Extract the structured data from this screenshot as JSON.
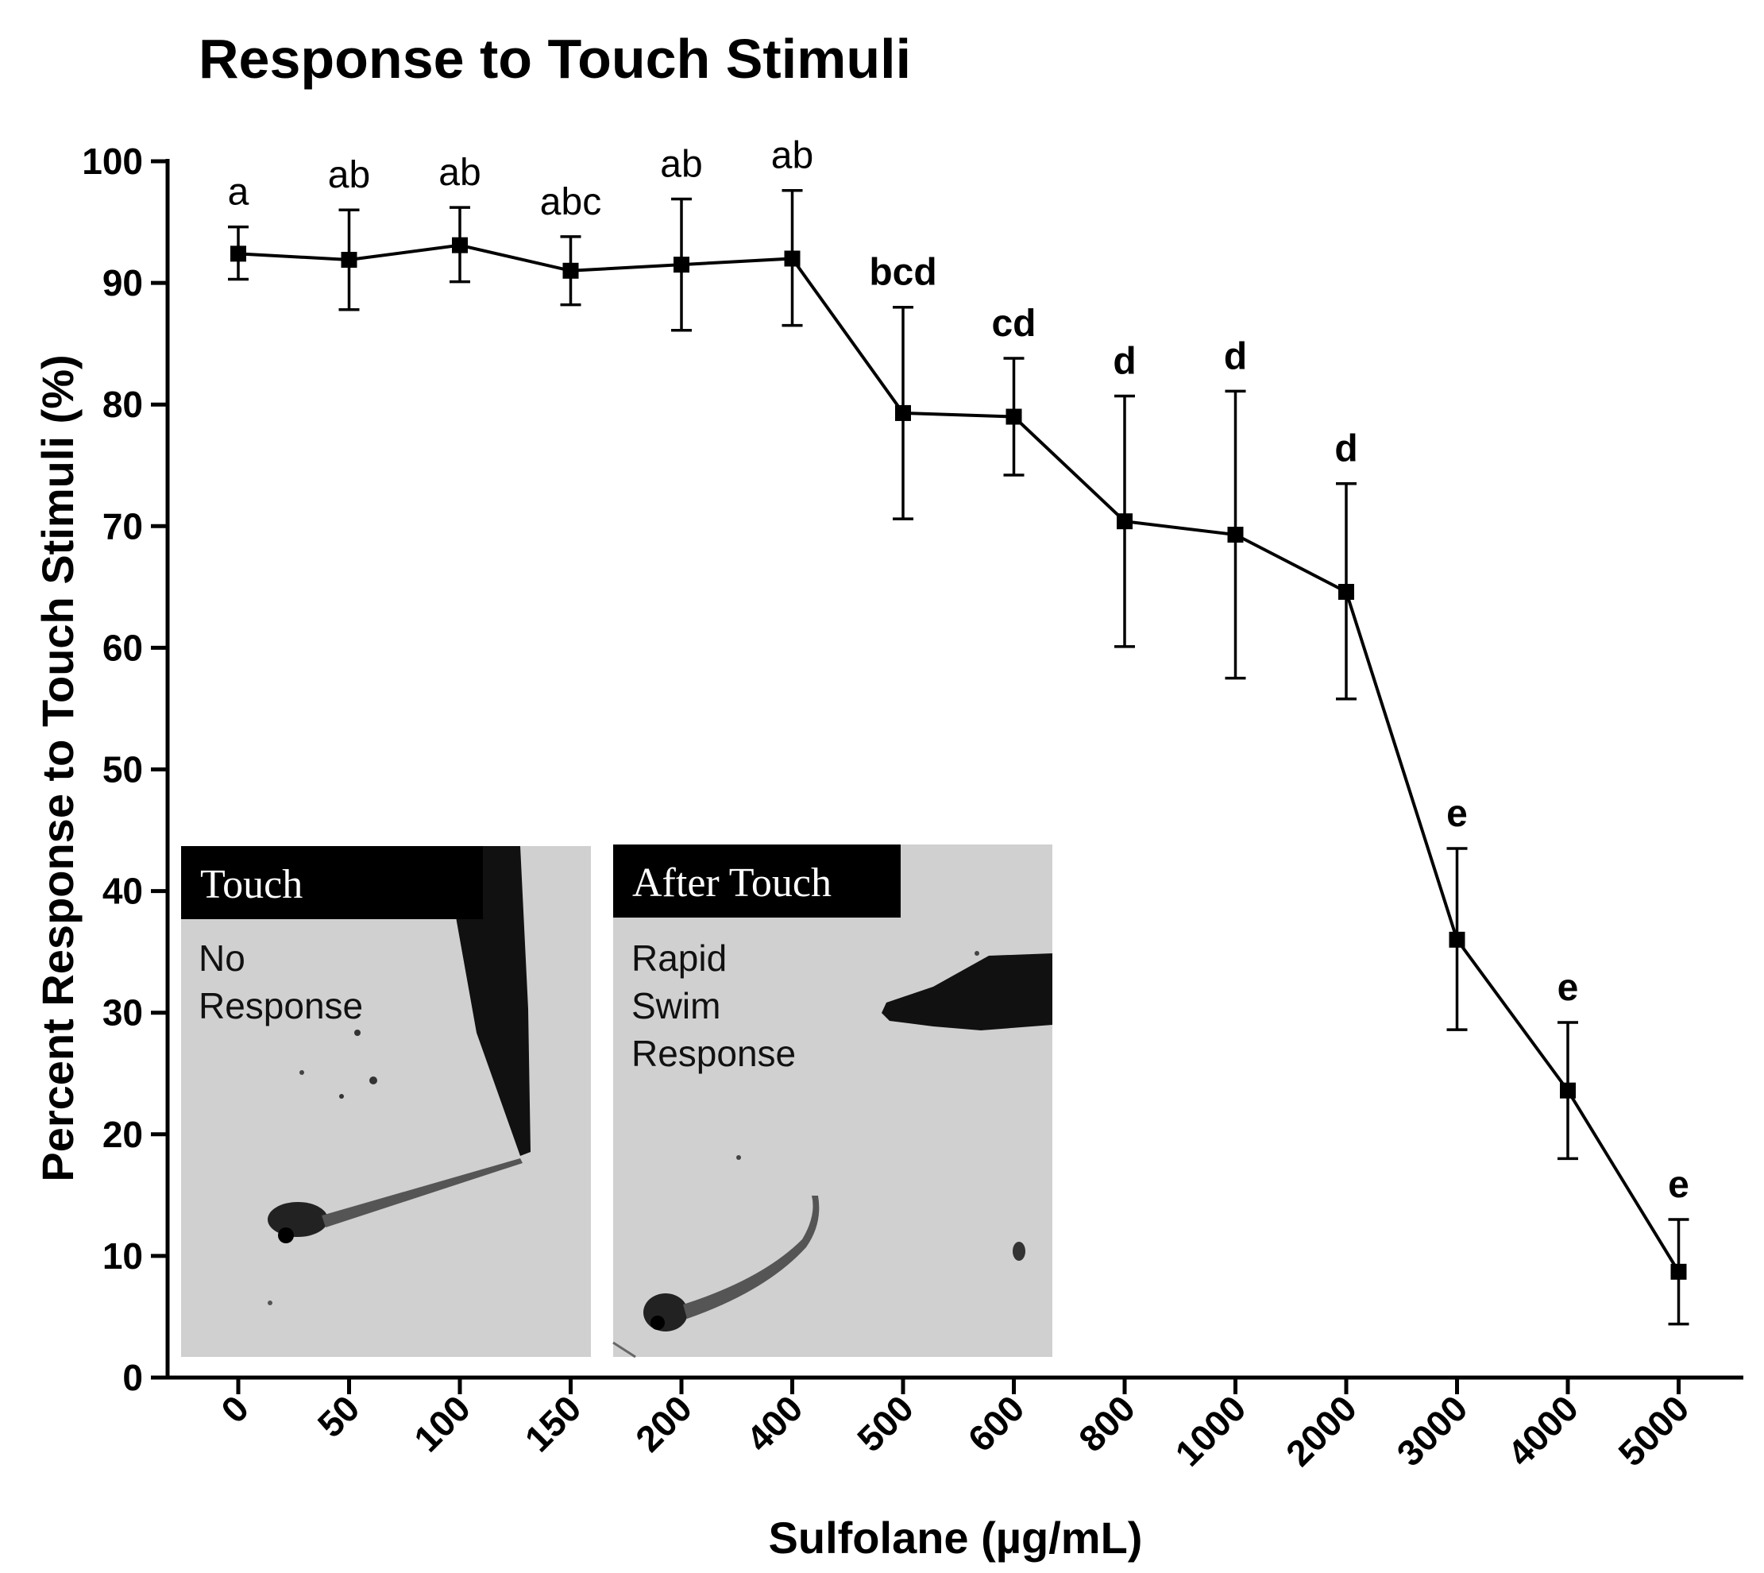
{
  "chart_data": {
    "type": "line",
    "title": "Response to Touch Stimuli",
    "xlabel": "Sulfolane (µg/mL)",
    "ylabel": "Percent Response to Touch Stimuli (%)",
    "ylim": [
      0,
      100
    ],
    "yticks": [
      "0",
      "10",
      "20",
      "30",
      "40",
      "50",
      "60",
      "70",
      "80",
      "90",
      "100"
    ],
    "categories": [
      "0",
      "50",
      "100",
      "150",
      "200",
      "400",
      "500",
      "600",
      "800",
      "1000",
      "2000",
      "3000",
      "4000",
      "5000"
    ],
    "series": [
      {
        "name": "Response to Touch Stimuli",
        "values": [
          92.4,
          91.9,
          93.1,
          91.0,
          91.5,
          92.0,
          79.3,
          79.0,
          70.4,
          69.3,
          64.6,
          36.0,
          23.6,
          8.7
        ],
        "err_upper": [
          94.6,
          96.0,
          96.2,
          93.8,
          96.9,
          97.6,
          88.0,
          83.8,
          80.7,
          81.1,
          73.5,
          43.5,
          29.2,
          13.0
        ],
        "err_lower": [
          90.3,
          87.8,
          90.1,
          88.2,
          86.1,
          86.5,
          70.6,
          74.2,
          60.1,
          57.5,
          55.8,
          28.6,
          18.0,
          4.4
        ]
      }
    ],
    "annotations": [
      "a",
      "ab",
      "ab",
      "abc",
      "ab",
      "ab",
      "bcd",
      "cd",
      "d",
      "d",
      "d",
      "e",
      "e",
      "e"
    ],
    "grid": false,
    "legend": "none"
  },
  "insets": [
    {
      "tag": "Touch",
      "caption": [
        "No",
        "Response"
      ]
    },
    {
      "tag": "After Touch",
      "caption": [
        "Rapid",
        "Swim",
        "Response"
      ]
    }
  ]
}
